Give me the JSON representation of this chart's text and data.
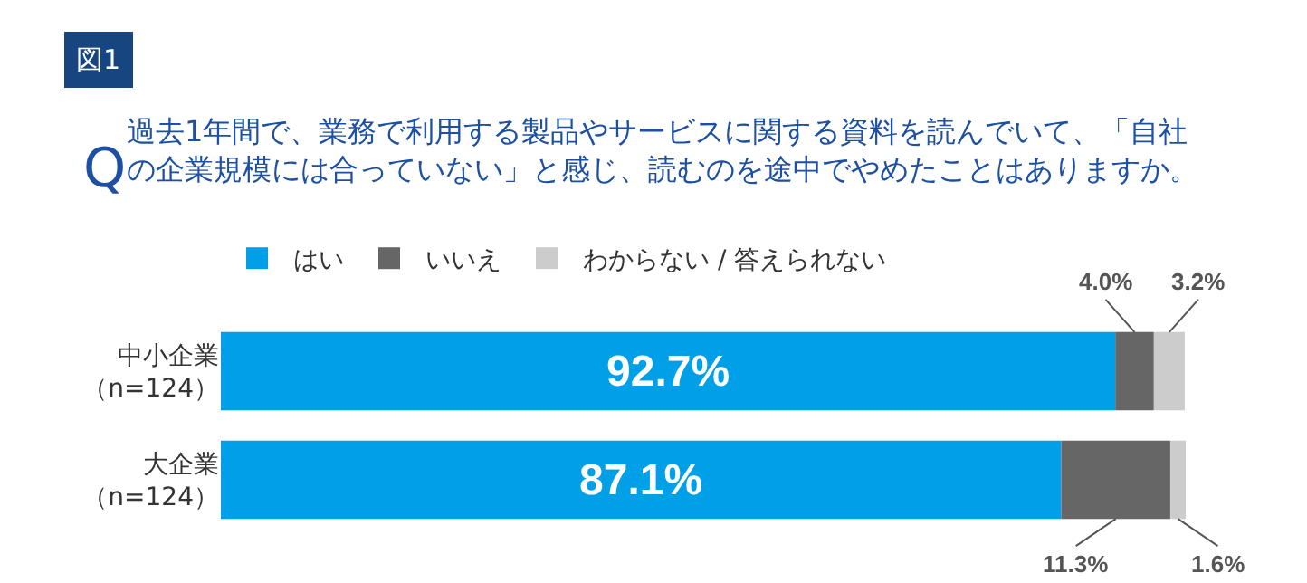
{
  "chart_data": {
    "type": "bar",
    "orientation": "horizontal",
    "stacked": true,
    "title": "過去1年間で、業務で利用する製品やサービスに関する資料を読んでいて、「自社の企業規模には合っていない」と感じ、読むのを途中でやめたことはありますか。",
    "annotations": [
      "図1",
      "Q"
    ],
    "categories": [
      "中小企業（n=124）",
      "大企業（n=124）"
    ],
    "series": [
      {
        "name": "はい",
        "color": "#00a0e9",
        "values": [
          92.7,
          87.1
        ],
        "value_labels": [
          "92.7%",
          "87.1%"
        ]
      },
      {
        "name": "いいえ",
        "color": "#666666",
        "values": [
          4.0,
          11.3
        ],
        "value_labels": [
          "4.0%",
          "11.3%"
        ]
      },
      {
        "name": "わからない / 答えられない",
        "color": "#cccccc",
        "values": [
          3.2,
          1.6
        ],
        "value_labels": [
          "3.2%",
          "1.6%"
        ]
      }
    ],
    "legend": "top",
    "tick_labels": "y"
  }
}
